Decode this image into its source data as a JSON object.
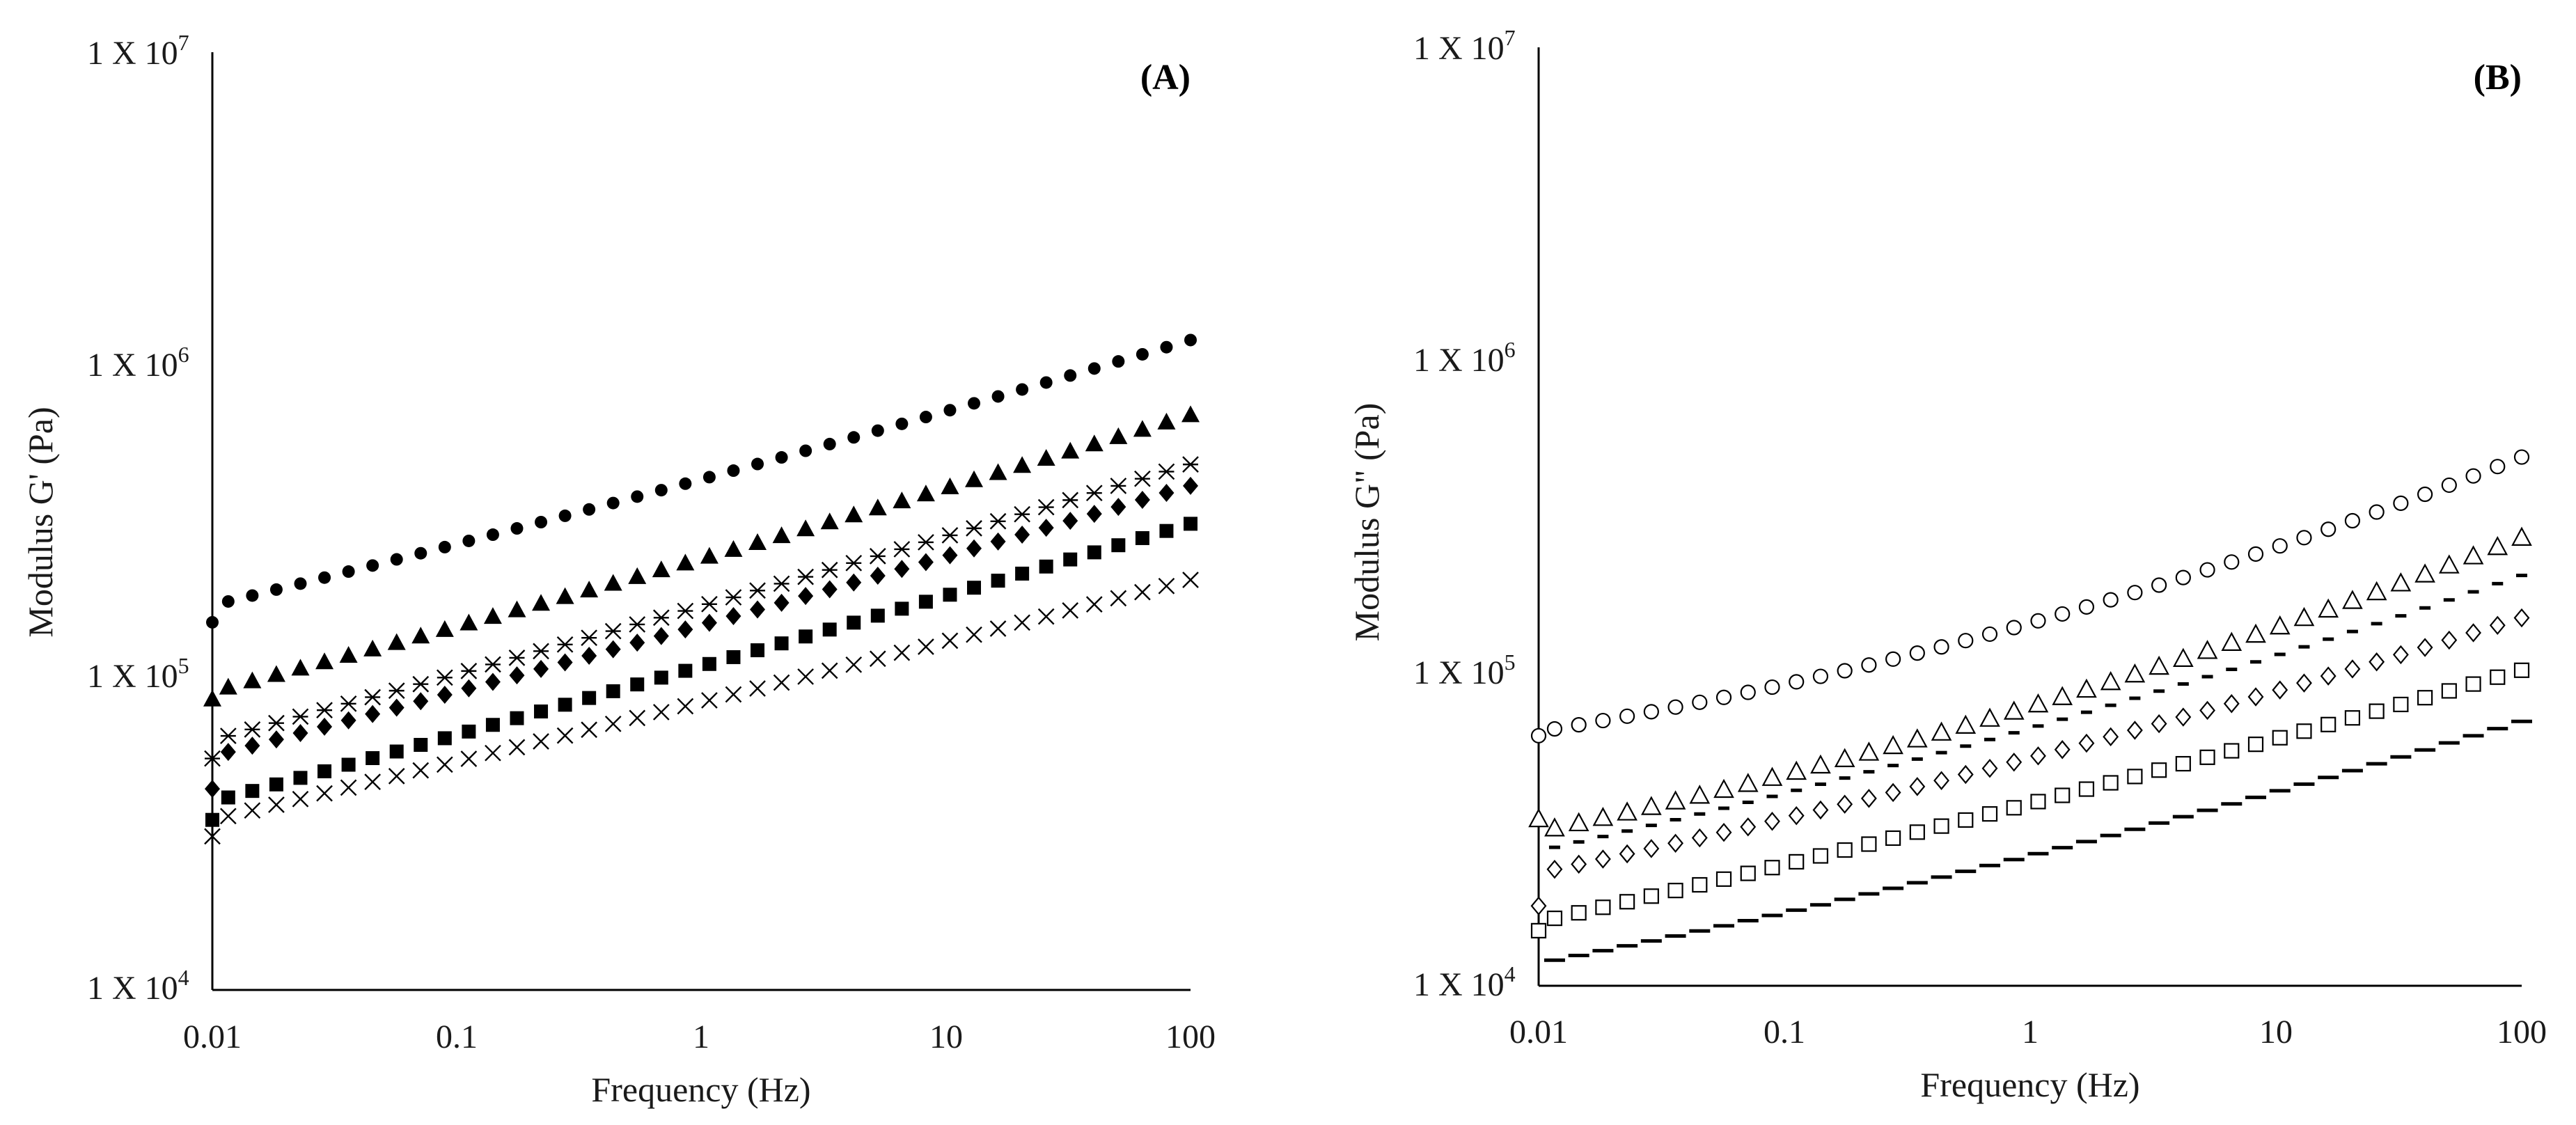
{
  "chart_data": [
    {
      "type": "scatter",
      "panel": "(A)",
      "xlabel": "Frequency (Hz)",
      "ylabel": "Modulus G' (Pa)",
      "xscale": "log",
      "yscale": "log",
      "xlim": [
        0.01,
        100
      ],
      "ylim": [
        10000,
        10000000
      ],
      "x_ticks": [
        {
          "value": 0.01,
          "label": "0.01"
        },
        {
          "value": 0.1,
          "label": "0.1"
        },
        {
          "value": 1,
          "label": "1"
        },
        {
          "value": 10,
          "label": "10"
        },
        {
          "value": 100,
          "label": "100"
        }
      ],
      "y_ticks": [
        {
          "value": 10000,
          "base": "1 X 10",
          "exp": "4"
        },
        {
          "value": 100000,
          "base": "1 X 10",
          "exp": "5"
        },
        {
          "value": 1000000,
          "base": "1 X 10",
          "exp": "6"
        },
        {
          "value": 10000000,
          "base": "1 X 10",
          "exp": "7"
        }
      ],
      "points_per_series": 41,
      "series": [
        {
          "name": "filled-circle",
          "marker": "circle-filled",
          "first_point": 150000,
          "start": 170000,
          "end": 1200000,
          "curve": 0.1
        },
        {
          "name": "filled-triangle",
          "marker": "triangle-filled",
          "first_point": 85000,
          "start": 90000,
          "end": 690000,
          "curve": 0.08
        },
        {
          "name": "asterisk",
          "marker": "asterisk",
          "first_point": 55000,
          "start": 63000,
          "end": 480000,
          "curve": 0.06
        },
        {
          "name": "filled-diamond",
          "marker": "diamond-filled",
          "first_point": 44000,
          "start": 56000,
          "end": 410000,
          "curve": 0.06
        },
        {
          "name": "filled-square",
          "marker": "square-filled",
          "first_point": 35000,
          "start": 40000,
          "end": 310000,
          "curve": 0.05
        },
        {
          "name": "cross",
          "marker": "x",
          "first_point": 31000,
          "start": 35000,
          "end": 205000,
          "curve": 0.04
        }
      ]
    },
    {
      "type": "scatter",
      "panel": "(B)",
      "xlabel": "Frequency (Hz)",
      "ylabel": "Modulus G\" (Pa)",
      "xscale": "log",
      "yscale": "log",
      "xlim": [
        0.01,
        100
      ],
      "ylim": [
        10000,
        10000000
      ],
      "x_ticks": [
        {
          "value": 0.01,
          "label": "0.01"
        },
        {
          "value": 0.1,
          "label": "0.1"
        },
        {
          "value": 1,
          "label": "1"
        },
        {
          "value": 10,
          "label": "10"
        },
        {
          "value": 100,
          "label": "100"
        }
      ],
      "y_ticks": [
        {
          "value": 10000,
          "base": "1 X 10",
          "exp": "4"
        },
        {
          "value": 100000,
          "base": "1 X 10",
          "exp": "5"
        },
        {
          "value": 1000000,
          "base": "1 X 10",
          "exp": "6"
        },
        {
          "value": 10000000,
          "base": "1 X 10",
          "exp": "7"
        }
      ],
      "points_per_series": 41,
      "series": [
        {
          "name": "open-circle",
          "marker": "circle-open",
          "first_point": 63000,
          "start": 65000,
          "end": 490000,
          "curve": 0.42
        },
        {
          "name": "open-triangle",
          "marker": "triangle-open",
          "first_point": 34000,
          "start": 31000,
          "end": 270000,
          "curve": 0.3
        },
        {
          "name": "short-dash",
          "marker": "dash-short",
          "first_point": null,
          "start": 27000,
          "end": 205000,
          "curve": 0.22
        },
        {
          "name": "open-diamond",
          "marker": "diamond-open",
          "first_point": 18000,
          "start": 23000,
          "end": 150000,
          "curve": 0.2
        },
        {
          "name": "open-square",
          "marker": "square-open",
          "first_point": 15000,
          "start": 16000,
          "end": 102000,
          "curve": 0.12
        },
        {
          "name": "long-dash",
          "marker": "dash-long",
          "first_point": null,
          "start": 11800,
          "end": 70000,
          "curve": 0.22
        }
      ]
    }
  ]
}
